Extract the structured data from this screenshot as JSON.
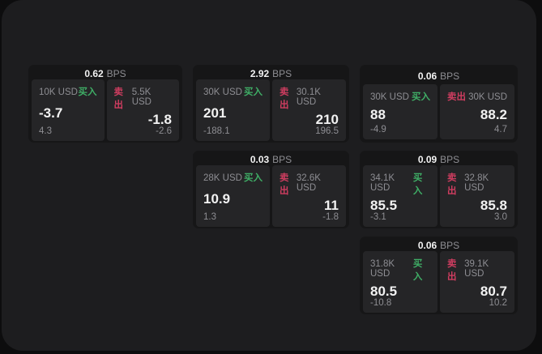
{
  "colors": {
    "page_bg": "#0d0d0e",
    "window_bg": "#1d1d1f",
    "card_bg": "#161617",
    "panel_bg": "#252527",
    "text_primary": "#f2f2f2",
    "text_secondary": "#8e8e93",
    "buy_green": "#3fae66",
    "sell_red": "#cf3d60"
  },
  "labels": {
    "buy": "买入",
    "sell": "卖出",
    "bps": "BPS"
  },
  "cards": [
    {
      "bps": "0.62",
      "buy": {
        "size": "10K USD",
        "price": "-3.7",
        "delta": "4.3"
      },
      "sell": {
        "size": "5.5K USD",
        "price": "-1.8",
        "delta": "-2.6"
      }
    },
    {
      "bps": "2.92",
      "buy": {
        "size": "30K USD",
        "price": "201",
        "delta": "-188.1"
      },
      "sell": {
        "size": "30.1K USD",
        "price": "210",
        "delta": "196.5"
      }
    },
    {
      "bps": "0.06",
      "buy": {
        "size": "30K USD",
        "price": "88",
        "delta": "-4.9"
      },
      "sell": {
        "size": "30K USD",
        "price": "88.2",
        "delta": "4.7"
      }
    },
    {
      "bps": "0.03",
      "buy": {
        "size": "28K USD",
        "price": "10.9",
        "delta": "1.3"
      },
      "sell": {
        "size": "32.6K USD",
        "price": "11",
        "delta": "-1.8"
      }
    },
    {
      "bps": "0.09",
      "buy": {
        "size": "34.1K USD",
        "price": "85.5",
        "delta": "-3.1"
      },
      "sell": {
        "size": "32.8K USD",
        "price": "85.8",
        "delta": "3.0"
      }
    },
    {
      "bps": "0.06",
      "buy": {
        "size": "31.8K USD",
        "price": "80.5",
        "delta": "-10.8"
      },
      "sell": {
        "size": "39.1K USD",
        "price": "80.7",
        "delta": "10.2"
      }
    }
  ]
}
